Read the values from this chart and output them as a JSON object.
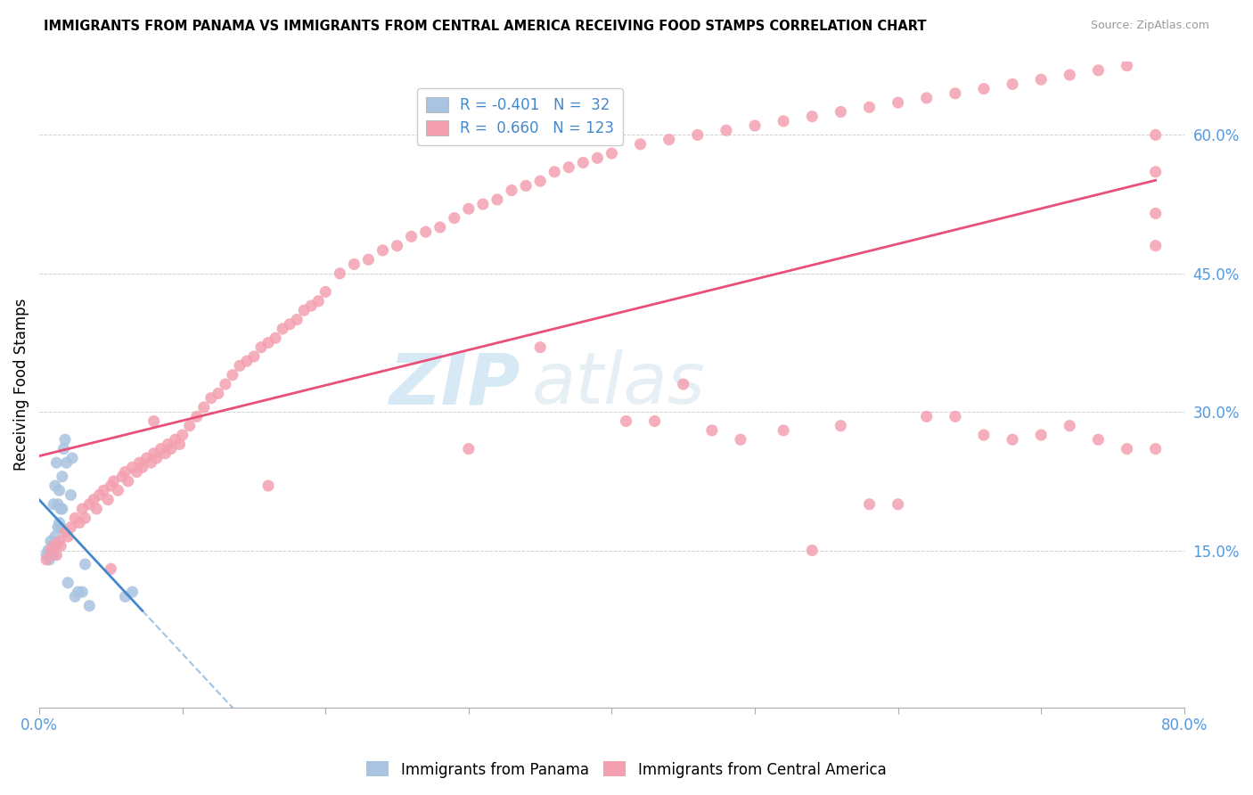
{
  "title": "IMMIGRANTS FROM PANAMA VS IMMIGRANTS FROM CENTRAL AMERICA RECEIVING FOOD STAMPS CORRELATION CHART",
  "source": "Source: ZipAtlas.com",
  "ylabel": "Receiving Food Stamps",
  "xlim": [
    0.0,
    0.8
  ],
  "ylim": [
    -0.02,
    0.68
  ],
  "xticks": [
    0.0,
    0.1,
    0.2,
    0.3,
    0.4,
    0.5,
    0.6,
    0.7,
    0.8
  ],
  "ytick_positions": [
    0.15,
    0.3,
    0.45,
    0.6
  ],
  "ytick_labels": [
    "15.0%",
    "30.0%",
    "45.0%",
    "60.0%"
  ],
  "xtick_labels": [
    "0.0%",
    "",
    "",
    "",
    "",
    "",
    "",
    "",
    "80.0%"
  ],
  "color_panama": "#a8c4e0",
  "color_central": "#f4a0b0",
  "color_line_panama": "#4488cc",
  "color_line_central": "#e8507a",
  "panama_x": [
    0.005,
    0.006,
    0.007,
    0.008,
    0.009,
    0.01,
    0.01,
    0.011,
    0.011,
    0.012,
    0.012,
    0.013,
    0.013,
    0.014,
    0.014,
    0.015,
    0.015,
    0.016,
    0.016,
    0.017,
    0.018,
    0.019,
    0.02,
    0.022,
    0.023,
    0.025,
    0.027,
    0.03,
    0.032,
    0.035,
    0.06,
    0.065
  ],
  "panama_y": [
    0.145,
    0.15,
    0.14,
    0.16,
    0.155,
    0.145,
    0.2,
    0.165,
    0.22,
    0.155,
    0.245,
    0.175,
    0.2,
    0.215,
    0.18,
    0.195,
    0.175,
    0.23,
    0.195,
    0.26,
    0.27,
    0.245,
    0.115,
    0.21,
    0.25,
    0.1,
    0.105,
    0.105,
    0.135,
    0.09,
    0.1,
    0.105
  ],
  "central_x": [
    0.005,
    0.008,
    0.01,
    0.012,
    0.014,
    0.015,
    0.018,
    0.02,
    0.022,
    0.025,
    0.028,
    0.03,
    0.032,
    0.035,
    0.038,
    0.04,
    0.042,
    0.045,
    0.048,
    0.05,
    0.052,
    0.055,
    0.058,
    0.06,
    0.062,
    0.065,
    0.068,
    0.07,
    0.072,
    0.075,
    0.078,
    0.08,
    0.082,
    0.085,
    0.088,
    0.09,
    0.092,
    0.095,
    0.098,
    0.1,
    0.105,
    0.11,
    0.115,
    0.12,
    0.125,
    0.13,
    0.135,
    0.14,
    0.145,
    0.15,
    0.155,
    0.16,
    0.165,
    0.17,
    0.175,
    0.18,
    0.185,
    0.19,
    0.195,
    0.2,
    0.21,
    0.22,
    0.23,
    0.24,
    0.25,
    0.26,
    0.27,
    0.28,
    0.29,
    0.3,
    0.31,
    0.32,
    0.33,
    0.34,
    0.35,
    0.36,
    0.37,
    0.38,
    0.39,
    0.4,
    0.42,
    0.44,
    0.46,
    0.48,
    0.5,
    0.52,
    0.54,
    0.56,
    0.58,
    0.6,
    0.62,
    0.64,
    0.66,
    0.68,
    0.7,
    0.72,
    0.74,
    0.76,
    0.05,
    0.08,
    0.16,
    0.3,
    0.35,
    0.41,
    0.43,
    0.45,
    0.47,
    0.49,
    0.52,
    0.54,
    0.56,
    0.58,
    0.6,
    0.62,
    0.64,
    0.66,
    0.68,
    0.7,
    0.72,
    0.74,
    0.76,
    0.78,
    0.78,
    0.78,
    0.78,
    0.78
  ],
  "central_y": [
    0.14,
    0.15,
    0.155,
    0.145,
    0.16,
    0.155,
    0.17,
    0.165,
    0.175,
    0.185,
    0.18,
    0.195,
    0.185,
    0.2,
    0.205,
    0.195,
    0.21,
    0.215,
    0.205,
    0.22,
    0.225,
    0.215,
    0.23,
    0.235,
    0.225,
    0.24,
    0.235,
    0.245,
    0.24,
    0.25,
    0.245,
    0.255,
    0.25,
    0.26,
    0.255,
    0.265,
    0.26,
    0.27,
    0.265,
    0.275,
    0.285,
    0.295,
    0.305,
    0.315,
    0.32,
    0.33,
    0.34,
    0.35,
    0.355,
    0.36,
    0.37,
    0.375,
    0.38,
    0.39,
    0.395,
    0.4,
    0.41,
    0.415,
    0.42,
    0.43,
    0.45,
    0.46,
    0.465,
    0.475,
    0.48,
    0.49,
    0.495,
    0.5,
    0.51,
    0.52,
    0.525,
    0.53,
    0.54,
    0.545,
    0.55,
    0.56,
    0.565,
    0.57,
    0.575,
    0.58,
    0.59,
    0.595,
    0.6,
    0.605,
    0.61,
    0.615,
    0.62,
    0.625,
    0.63,
    0.635,
    0.64,
    0.645,
    0.65,
    0.655,
    0.66,
    0.665,
    0.67,
    0.675,
    0.13,
    0.29,
    0.22,
    0.26,
    0.37,
    0.29,
    0.29,
    0.33,
    0.28,
    0.27,
    0.28,
    0.15,
    0.285,
    0.2,
    0.2,
    0.295,
    0.295,
    0.275,
    0.27,
    0.275,
    0.285,
    0.27,
    0.26,
    0.26,
    0.6,
    0.56,
    0.515,
    0.48
  ]
}
